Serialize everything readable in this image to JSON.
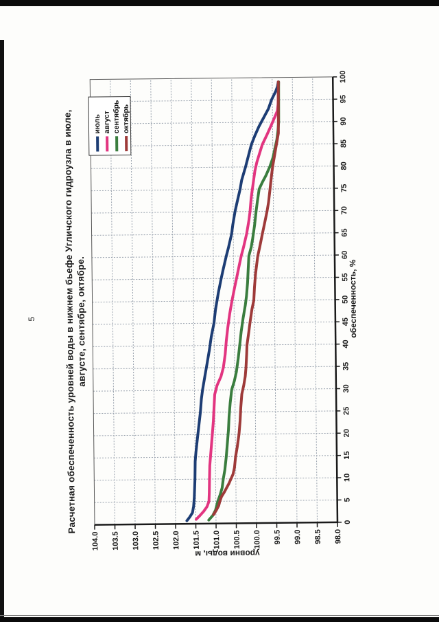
{
  "page": {
    "number": "5"
  },
  "chart_data": {
    "type": "line",
    "title_line1": "Расчетная обеспеченность уровней воды в нижнем бьефе Угличского гидроузла в июле,",
    "title_line2": "августе, сентябре, октябре.",
    "xlabel": "обеспеченность, %",
    "ylabel": "уровни воды, м",
    "xlim": [
      0,
      100
    ],
    "ylim": [
      98.0,
      104.0
    ],
    "grid": true,
    "legend_position": "top-right-inside",
    "x_tick_labels": [
      "0",
      "5",
      "10",
      "15",
      "20",
      "25",
      "30",
      "35",
      "40",
      "45",
      "50",
      "55",
      "60",
      "65",
      "70",
      "75",
      "80",
      "85",
      "90",
      "95",
      "100"
    ],
    "y_tick_labels": [
      "98.0",
      "98.5",
      "99.0",
      "99.5",
      "100.0",
      "100.5",
      "101.0",
      "101.5",
      "102.0",
      "102.5",
      "103.0",
      "103.5",
      "104.0"
    ],
    "colors": {
      "grid": "#97a0ac",
      "frame": "#555555",
      "axis": "#1a1a1a",
      "text": "#1a1a1a"
    },
    "series": [
      {
        "name": "июль",
        "color": "#1d3d74",
        "points": [
          [
            0.7,
            101.72
          ],
          [
            1.5,
            101.65
          ],
          [
            2.5,
            101.58
          ],
          [
            4,
            101.55
          ],
          [
            6,
            101.53
          ],
          [
            10,
            101.51
          ],
          [
            14,
            101.5
          ],
          [
            16,
            101.48
          ],
          [
            19,
            101.44
          ],
          [
            22,
            101.4
          ],
          [
            25,
            101.36
          ],
          [
            28,
            101.33
          ],
          [
            30,
            101.3
          ],
          [
            33,
            101.24
          ],
          [
            36,
            101.18
          ],
          [
            39,
            101.12
          ],
          [
            42,
            101.07
          ],
          [
            45,
            101.0
          ],
          [
            48,
            100.96
          ],
          [
            50,
            100.92
          ],
          [
            52,
            100.88
          ],
          [
            55,
            100.81
          ],
          [
            57,
            100.76
          ],
          [
            60,
            100.68
          ],
          [
            62,
            100.62
          ],
          [
            65,
            100.54
          ],
          [
            67,
            100.51
          ],
          [
            70,
            100.45
          ],
          [
            72,
            100.4
          ],
          [
            75,
            100.32
          ],
          [
            77,
            100.28
          ],
          [
            80,
            100.18
          ],
          [
            82,
            100.12
          ],
          [
            85,
            100.03
          ],
          [
            87,
            99.94
          ],
          [
            89,
            99.84
          ],
          [
            91,
            99.72
          ],
          [
            93,
            99.6
          ],
          [
            95,
            99.52
          ],
          [
            97,
            99.41
          ],
          [
            98,
            99.37
          ],
          [
            99,
            99.35
          ]
        ]
      },
      {
        "name": "август",
        "color": "#e23580",
        "points": [
          [
            1,
            101.49
          ],
          [
            1.8,
            101.4
          ],
          [
            2.8,
            101.3
          ],
          [
            3.8,
            101.22
          ],
          [
            5,
            101.17
          ],
          [
            7,
            101.16
          ],
          [
            10,
            101.15
          ],
          [
            13,
            101.14
          ],
          [
            15,
            101.12
          ],
          [
            17,
            101.1
          ],
          [
            20,
            101.07
          ],
          [
            23,
            101.04
          ],
          [
            26,
            101.02
          ],
          [
            29,
            101.0
          ],
          [
            31,
            100.94
          ],
          [
            33,
            100.84
          ],
          [
            35,
            100.78
          ],
          [
            38,
            100.73
          ],
          [
            41,
            100.7
          ],
          [
            44,
            100.66
          ],
          [
            47,
            100.61
          ],
          [
            50,
            100.55
          ],
          [
            53,
            100.48
          ],
          [
            55,
            100.43
          ],
          [
            58,
            100.36
          ],
          [
            60,
            100.31
          ],
          [
            62,
            100.25
          ],
          [
            65,
            100.17
          ],
          [
            68,
            100.11
          ],
          [
            70,
            100.08
          ],
          [
            73,
            100.05
          ],
          [
            76,
            100.0
          ],
          [
            79,
            99.95
          ],
          [
            81,
            99.9
          ],
          [
            83,
            99.83
          ],
          [
            85,
            99.76
          ],
          [
            87,
            99.65
          ],
          [
            89,
            99.55
          ],
          [
            91,
            99.45
          ],
          [
            92.5,
            99.38
          ],
          [
            94,
            99.36
          ],
          [
            99,
            99.34
          ]
        ]
      },
      {
        "name": "сентябрь",
        "color": "#3a7d3e",
        "points": [
          [
            0.8,
            101.18
          ],
          [
            1.8,
            101.08
          ],
          [
            3,
            101.01
          ],
          [
            5,
            100.95
          ],
          [
            6.5,
            100.89
          ],
          [
            8,
            100.84
          ],
          [
            10,
            100.81
          ],
          [
            12,
            100.77
          ],
          [
            15,
            100.73
          ],
          [
            18,
            100.7
          ],
          [
            21,
            100.67
          ],
          [
            24,
            100.65
          ],
          [
            27,
            100.62
          ],
          [
            30,
            100.58
          ],
          [
            32,
            100.51
          ],
          [
            34,
            100.46
          ],
          [
            37,
            100.41
          ],
          [
            40,
            100.37
          ],
          [
            43,
            100.33
          ],
          [
            46,
            100.28
          ],
          [
            49,
            100.22
          ],
          [
            51,
            100.19
          ],
          [
            54,
            100.16
          ],
          [
            57,
            100.14
          ],
          [
            60,
            100.12
          ],
          [
            62,
            100.06
          ],
          [
            64,
            100.02
          ],
          [
            67,
            99.97
          ],
          [
            70,
            99.93
          ],
          [
            72,
            99.9
          ],
          [
            75,
            99.85
          ],
          [
            76.5,
            99.77
          ],
          [
            78,
            99.68
          ],
          [
            80,
            99.58
          ],
          [
            82,
            99.5
          ],
          [
            84,
            99.45
          ],
          [
            86,
            99.4
          ],
          [
            88,
            99.37
          ],
          [
            90,
            99.35
          ],
          [
            99,
            99.34
          ]
        ]
      },
      {
        "name": "октябрь",
        "color": "#9e3a39",
        "points": [
          [
            2,
            101.06
          ],
          [
            3,
            100.99
          ],
          [
            4,
            100.93
          ],
          [
            5,
            100.9
          ],
          [
            6,
            100.86
          ],
          [
            7,
            100.79
          ],
          [
            8,
            100.73
          ],
          [
            9,
            100.67
          ],
          [
            10,
            100.62
          ],
          [
            11,
            100.57
          ],
          [
            12.5,
            100.53
          ],
          [
            15,
            100.5
          ],
          [
            17,
            100.46
          ],
          [
            20,
            100.41
          ],
          [
            23,
            100.38
          ],
          [
            26,
            100.36
          ],
          [
            29,
            100.33
          ],
          [
            31,
            100.28
          ],
          [
            33,
            100.24
          ],
          [
            35,
            100.22
          ],
          [
            38,
            100.2
          ],
          [
            40,
            100.19
          ],
          [
            43,
            100.14
          ],
          [
            45,
            100.11
          ],
          [
            48,
            100.06
          ],
          [
            50,
            100.01
          ],
          [
            53,
            99.99
          ],
          [
            56,
            99.96
          ],
          [
            58,
            99.93
          ],
          [
            60,
            99.9
          ],
          [
            62,
            99.85
          ],
          [
            65,
            99.78
          ],
          [
            67,
            99.73
          ],
          [
            70,
            99.66
          ],
          [
            72,
            99.62
          ],
          [
            75,
            99.58
          ],
          [
            78,
            99.54
          ],
          [
            80,
            99.51
          ],
          [
            82,
            99.47
          ],
          [
            84,
            99.43
          ],
          [
            86,
            99.39
          ],
          [
            87.5,
            99.36
          ],
          [
            99,
            99.35
          ]
        ]
      }
    ]
  }
}
